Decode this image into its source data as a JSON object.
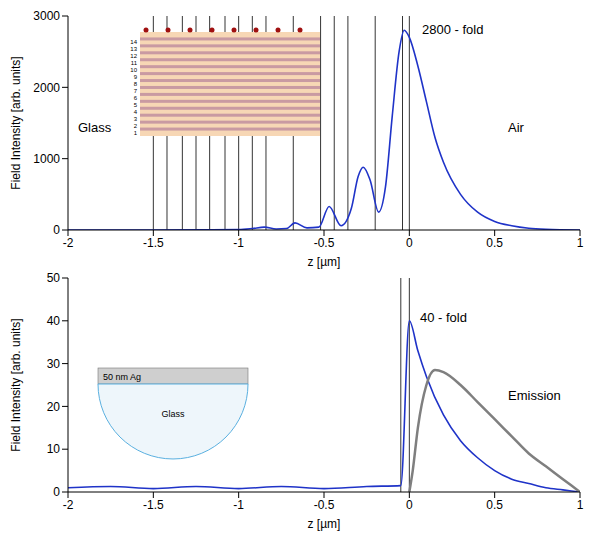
{
  "chart_data": [
    {
      "type": "line",
      "x_label": "z [µm]",
      "y_label": "Field Intensity [arb. units]",
      "xlim": [
        -2,
        1
      ],
      "xticks": [
        -2,
        -1.5,
        -1,
        -0.5,
        0,
        0.5,
        1
      ],
      "ylim": [
        0,
        3000
      ],
      "yticks": [
        0,
        1000,
        2000,
        3000
      ],
      "layer_boundaries": [
        -1.5,
        -1.42,
        -1.33,
        -1.25,
        -1.17,
        -1.08,
        -1.0,
        -0.92,
        -0.84,
        -0.68,
        -0.52,
        -0.44,
        -0.36,
        -0.2,
        -0.04,
        0
      ],
      "annotations": [
        "Glass",
        "Air",
        "2800 - fold"
      ],
      "inset": {
        "layer_labels": [
          1,
          2,
          3,
          4,
          5,
          6,
          7,
          8,
          9,
          10,
          11,
          12,
          13,
          14
        ]
      },
      "series": [
        {
          "color": "#1f33c8",
          "x": [
            -2,
            -1.5,
            -1.2,
            -1.0,
            -0.92,
            -0.85,
            -0.78,
            -0.72,
            -0.67,
            -0.6,
            -0.53,
            -0.47,
            -0.4,
            -0.34,
            -0.3,
            -0.27,
            -0.23,
            -0.18,
            -0.14,
            -0.1,
            -0.06,
            -0.03,
            0,
            0.05,
            0.1,
            0.15,
            0.2,
            0.3,
            0.4,
            0.5,
            0.6,
            0.7,
            0.8,
            1
          ],
          "values": [
            0,
            0,
            2,
            5,
            20,
            40,
            15,
            20,
            100,
            30,
            40,
            330,
            60,
            300,
            750,
            880,
            700,
            250,
            600,
            1600,
            2500,
            2800,
            2700,
            2300,
            1800,
            1300,
            950,
            500,
            250,
            120,
            60,
            25,
            10,
            0
          ]
        }
      ]
    },
    {
      "type": "line",
      "x_label": "z [µm]",
      "y_label": "Field Intensity [arb. units]",
      "xlim": [
        -2,
        1
      ],
      "xticks": [
        -2,
        -1.5,
        -1,
        -0.5,
        0,
        0.5,
        1
      ],
      "ylim": [
        0,
        50
      ],
      "yticks": [
        0,
        10,
        20,
        30,
        40,
        50
      ],
      "layer_boundaries": [
        -0.05,
        0
      ],
      "annotations": [
        "40 - fold"
      ],
      "inset": {
        "labels": [
          "50 nm Ag",
          "Glass"
        ]
      },
      "series": [
        {
          "color": "#1f33c8",
          "x": [
            -2,
            -1.75,
            -1.5,
            -1.25,
            -1,
            -0.75,
            -0.5,
            -0.25,
            -0.05,
            0,
            0.05,
            0.1,
            0.2,
            0.3,
            0.4,
            0.5,
            0.6,
            0.7,
            0.8,
            0.9,
            1
          ],
          "values": [
            1,
            1.3,
            0.8,
            1.3,
            0.8,
            1.3,
            0.8,
            1.3,
            1.5,
            40,
            33,
            27,
            18,
            12,
            8,
            5,
            3,
            2,
            1,
            0.5,
            0
          ]
        },
        {
          "name": "Emission",
          "color": "#7f7f7f",
          "x": [
            0,
            0.02,
            0.05,
            0.1,
            0.15,
            0.2,
            0.3,
            0.4,
            0.5,
            0.6,
            0.7,
            0.8,
            0.9,
            1
          ],
          "values": [
            0,
            5,
            15,
            25,
            28.5,
            28,
            25,
            21,
            17,
            13,
            9,
            6,
            3,
            0
          ]
        }
      ]
    }
  ]
}
